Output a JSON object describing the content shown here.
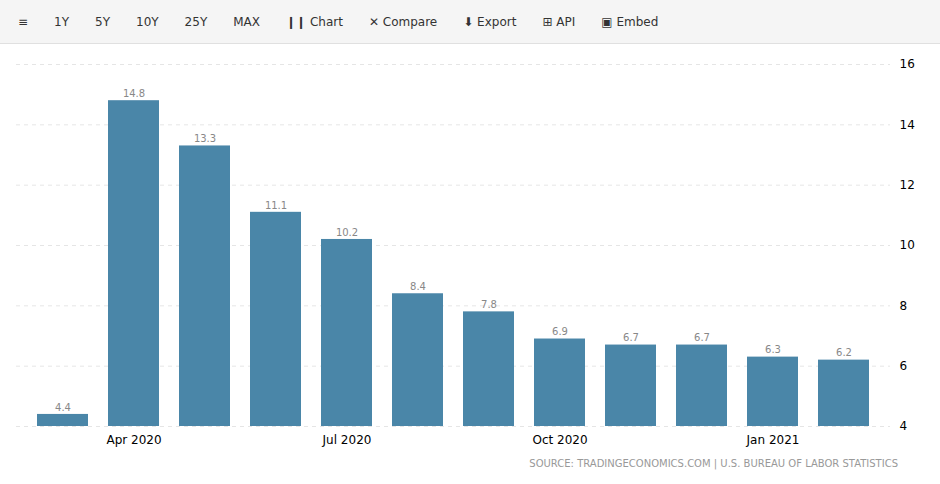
{
  "chart_data": {
    "type": "bar",
    "categories": [
      null,
      "Apr 2020",
      null,
      null,
      "Jul 2020",
      null,
      null,
      "Oct 2020",
      null,
      null,
      "Jan 2021",
      null
    ],
    "values": [
      4.4,
      14.8,
      13.3,
      11.1,
      10.2,
      8.4,
      7.8,
      6.9,
      6.7,
      6.7,
      6.3,
      6.2
    ],
    "color": "#4a86a8",
    "ylim": [
      4,
      16
    ],
    "yticks": [
      4,
      6,
      8,
      10,
      12,
      14,
      16
    ],
    "grid": true,
    "data_labels": true,
    "annotations": [
      "≡",
      "1Y",
      "5Y",
      "10Y",
      "25Y",
      "MAX",
      "❙❙ Chart",
      "✕ Compare",
      "⬇ Export",
      "⊞ API",
      "▣ Embed",
      "SOURCE: TRADINGECONOMICS.COM | U.S. BUREAU OF LABOR STATISTICS"
    ]
  }
}
